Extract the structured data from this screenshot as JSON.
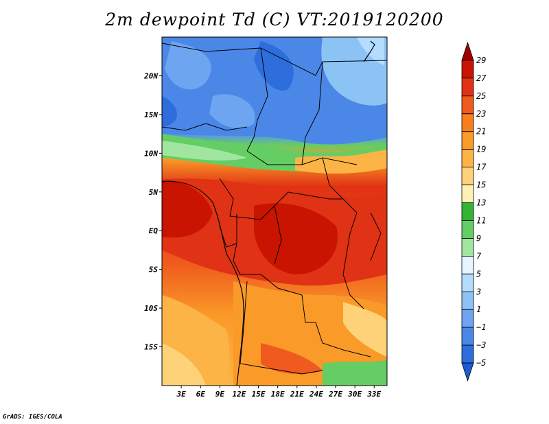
{
  "title": "2m dewpoint Td (C) VT:2019120200",
  "credit": "GrADS: IGES/COLA",
  "map": {
    "lat_labels": [
      "20N",
      "15N",
      "10N",
      "5N",
      "EQ",
      "5S",
      "10S",
      "15S"
    ],
    "lon_labels": [
      "3E",
      "6E",
      "9E",
      "12E",
      "15E",
      "18E",
      "21E",
      "24E",
      "27E",
      "30E",
      "33E"
    ],
    "lat_values": [
      20,
      15,
      10,
      5,
      0,
      -5,
      -10,
      -15
    ],
    "lon_values": [
      3,
      6,
      9,
      12,
      15,
      18,
      21,
      24,
      27,
      30,
      33
    ],
    "lon_range": [
      0,
      35
    ],
    "lat_range": [
      -20,
      25
    ]
  },
  "colorbar": {
    "labels": [
      "29",
      "27",
      "25",
      "23",
      "21",
      "19",
      "17",
      "15",
      "13",
      "11",
      "9",
      "7",
      "5",
      "3",
      "1",
      "−1",
      "−3",
      "−5"
    ],
    "colors": [
      "#a00000",
      "#c81400",
      "#e03214",
      "#f05a1e",
      "#f87e1e",
      "#fa9a28",
      "#fcb446",
      "#fed278",
      "#fff0b4",
      "#32b432",
      "#64cd64",
      "#a0e6a0",
      "#e6f5ff",
      "#b4dcff",
      "#8cc3f5",
      "#6ea5f0",
      "#4b87e6",
      "#2d6edc",
      "#1e5ad2"
    ]
  }
}
